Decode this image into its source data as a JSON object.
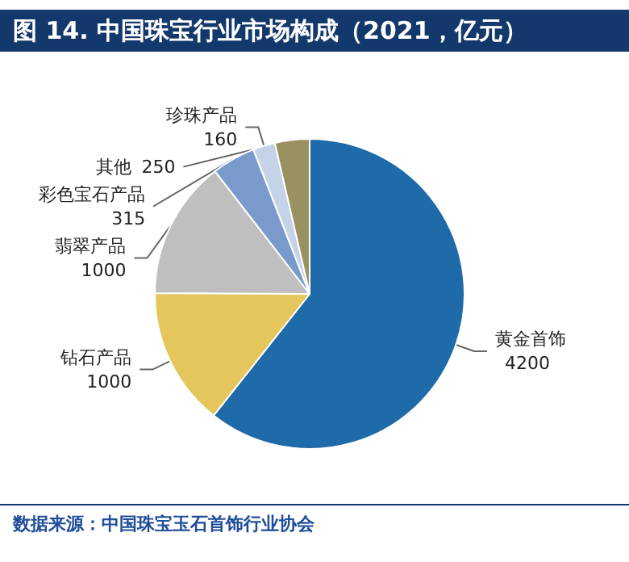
{
  "chart_data": {
    "type": "pie",
    "title": "图 14. 中国珠宝行业市场构成（2021，亿元）",
    "categories": [
      "黄金首饰",
      "钻石产品",
      "翡翠产品",
      "彩色宝石产品",
      "珍珠产品",
      "其他"
    ],
    "values": [
      4200,
      1000,
      1000,
      315,
      160,
      250
    ],
    "colors": [
      "#1f6aa8",
      "#e5c65c",
      "#bfbfbf",
      "#7a9acb",
      "#c5d3e8",
      "#9a9160"
    ],
    "data_labels": true,
    "legend": false,
    "annotations": [
      "数据来源：中国珠宝玉石首饰行业协会"
    ]
  }
}
